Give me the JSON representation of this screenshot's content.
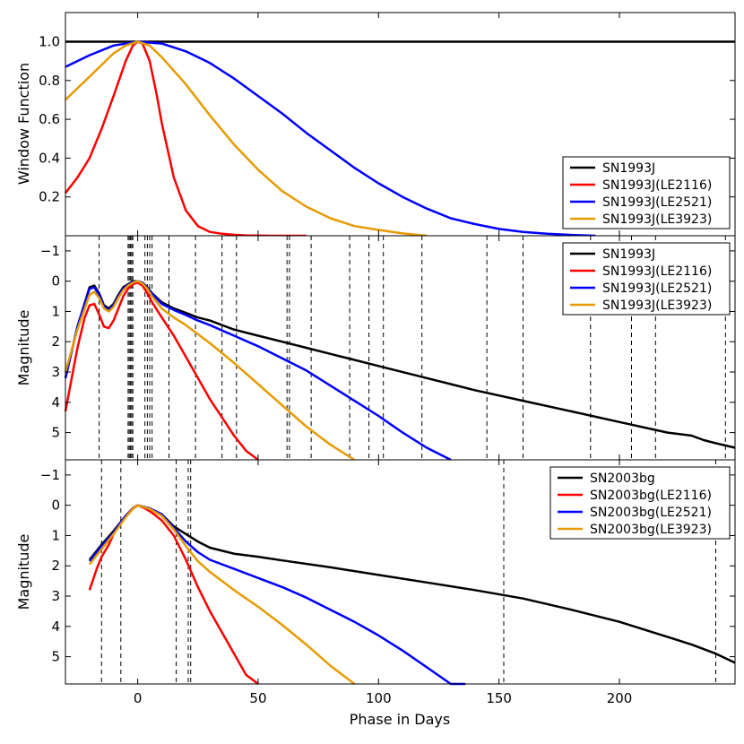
{
  "figure": {
    "xlabel": "Phase in Days"
  },
  "chart_data": [
    {
      "type": "line",
      "panel": "window",
      "title": "",
      "xlabel": "Phase in Days",
      "ylabel": "Window Function",
      "xlim": [
        -30,
        248
      ],
      "ylim": [
        0,
        1.15
      ],
      "inverted_y": false,
      "x_ticks": [
        0,
        50,
        100,
        150,
        200
      ],
      "x_tick_labels": [
        "",
        "",
        "",
        "",
        ""
      ],
      "y_ticks": [
        0.2,
        0.4,
        0.6,
        0.8,
        1.0
      ],
      "y_tick_labels": [
        "0.2",
        "0.4",
        "0.6",
        "0.8",
        "1.0"
      ],
      "legend_position": "bottom-right",
      "vlines": [],
      "series": [
        {
          "name": "SN1993J",
          "color": "#000000",
          "x": [
            -30,
            248
          ],
          "y": [
            1.0,
            1.0
          ]
        },
        {
          "name": "SN1993J(LE2116)",
          "color": "#ff0000",
          "x": [
            -30,
            -25,
            -20,
            -15,
            -10,
            -5,
            -2,
            0,
            2,
            5,
            8,
            10,
            15,
            20,
            25,
            30,
            35,
            40,
            45,
            50,
            55,
            60,
            70
          ],
          "y": [
            0.22,
            0.3,
            0.4,
            0.55,
            0.72,
            0.9,
            0.98,
            1.0,
            0.99,
            0.9,
            0.72,
            0.58,
            0.3,
            0.13,
            0.05,
            0.02,
            0.01,
            0.005,
            0.002,
            0.001,
            0.0,
            0.0,
            0.0
          ]
        },
        {
          "name": "SN1993J(LE2521)",
          "color": "#0000ff",
          "x": [
            -30,
            -20,
            -10,
            0,
            10,
            20,
            30,
            40,
            50,
            60,
            70,
            80,
            90,
            100,
            110,
            120,
            130,
            140,
            150,
            160,
            170,
            180,
            190
          ],
          "y": [
            0.87,
            0.93,
            0.98,
            1.0,
            0.99,
            0.95,
            0.89,
            0.81,
            0.72,
            0.63,
            0.53,
            0.44,
            0.35,
            0.27,
            0.2,
            0.14,
            0.09,
            0.06,
            0.035,
            0.02,
            0.01,
            0.004,
            0.0
          ]
        },
        {
          "name": "SN1993J(LE3923)",
          "color": "#e69b00",
          "x": [
            -30,
            -20,
            -10,
            -5,
            0,
            5,
            10,
            20,
            30,
            40,
            50,
            60,
            70,
            80,
            90,
            100,
            110,
            120
          ],
          "y": [
            0.7,
            0.82,
            0.94,
            0.98,
            1.0,
            0.98,
            0.92,
            0.78,
            0.62,
            0.47,
            0.34,
            0.23,
            0.15,
            0.09,
            0.05,
            0.03,
            0.012,
            0.0
          ]
        }
      ]
    },
    {
      "type": "line",
      "panel": "sn1993j",
      "title": "",
      "xlabel": "Phase in Days",
      "ylabel": "Magnitude",
      "xlim": [
        -30,
        248
      ],
      "ylim": [
        5.9,
        -1.5
      ],
      "inverted_y": true,
      "x_ticks": [
        0,
        50,
        100,
        150,
        200
      ],
      "x_tick_labels": [
        "",
        "",
        "",
        "",
        ""
      ],
      "y_ticks": [
        -1,
        0,
        1,
        2,
        3,
        4,
        5
      ],
      "y_tick_labels": [
        "−1",
        "0",
        "1",
        "2",
        "3",
        "4",
        "5"
      ],
      "legend_position": "top-right",
      "vlines": [
        -16,
        -4,
        -3.5,
        -3,
        -2.5,
        -2,
        3,
        4,
        5,
        6,
        13,
        24,
        35,
        41,
        62,
        63,
        72,
        88,
        96,
        102,
        118,
        145,
        160,
        188,
        205,
        215,
        244
      ],
      "series": [
        {
          "name": "SN1993J",
          "color": "#000000",
          "x": [
            -30,
            -25,
            -20,
            -18,
            -16,
            -14,
            -12,
            -10,
            -8,
            -6,
            -4,
            -2,
            0,
            2,
            4,
            6,
            10,
            15,
            20,
            25,
            30,
            40,
            50,
            60,
            70,
            80,
            90,
            100,
            120,
            140,
            160,
            180,
            200,
            220,
            230,
            235,
            240,
            248
          ],
          "y": [
            3.2,
            1.5,
            0.2,
            0.15,
            0.4,
            0.8,
            0.9,
            0.75,
            0.45,
            0.2,
            0.1,
            0.0,
            0.0,
            0.05,
            0.2,
            0.4,
            0.7,
            0.9,
            1.05,
            1.2,
            1.3,
            1.6,
            1.8,
            2.0,
            2.2,
            2.4,
            2.6,
            2.8,
            3.2,
            3.6,
            3.95,
            4.3,
            4.65,
            5.0,
            5.1,
            5.25,
            5.35,
            5.5
          ]
        },
        {
          "name": "SN1993J(LE2116)",
          "color": "#ff0000",
          "x": [
            -30,
            -25,
            -22,
            -20,
            -18,
            -16,
            -14,
            -12,
            -10,
            -8,
            -6,
            -4,
            -2,
            0,
            2,
            4,
            6,
            10,
            15,
            20,
            25,
            30,
            35,
            40,
            45,
            50
          ],
          "y": [
            4.3,
            2.2,
            1.2,
            0.8,
            0.75,
            1.1,
            1.5,
            1.55,
            1.3,
            0.9,
            0.5,
            0.25,
            0.1,
            0.05,
            0.15,
            0.4,
            0.7,
            1.2,
            1.8,
            2.5,
            3.2,
            3.9,
            4.5,
            5.1,
            5.6,
            6.0
          ]
        },
        {
          "name": "SN1993J(LE2521)",
          "color": "#0000ff",
          "x": [
            -30,
            -25,
            -20,
            -18,
            -16,
            -14,
            -12,
            -10,
            -8,
            -6,
            -4,
            -2,
            0,
            2,
            4,
            6,
            10,
            15,
            20,
            25,
            30,
            40,
            50,
            60,
            70,
            80,
            90,
            100,
            110,
            120,
            130
          ],
          "y": [
            3.2,
            1.5,
            0.25,
            0.2,
            0.45,
            0.85,
            0.95,
            0.8,
            0.5,
            0.25,
            0.12,
            0.03,
            0.0,
            0.06,
            0.22,
            0.42,
            0.75,
            0.95,
            1.12,
            1.3,
            1.45,
            1.8,
            2.15,
            2.55,
            2.95,
            3.45,
            3.95,
            4.45,
            5.0,
            5.5,
            6.0
          ]
        },
        {
          "name": "SN1993J(LE3923)",
          "color": "#e69b00",
          "x": [
            -30,
            -25,
            -20,
            -18,
            -16,
            -14,
            -12,
            -10,
            -8,
            -6,
            -4,
            -2,
            0,
            2,
            4,
            6,
            10,
            15,
            20,
            25,
            30,
            40,
            50,
            60,
            70,
            80,
            90
          ],
          "y": [
            3.0,
            1.6,
            0.45,
            0.35,
            0.55,
            0.9,
            1.0,
            0.85,
            0.55,
            0.3,
            0.15,
            0.05,
            0.0,
            0.08,
            0.25,
            0.5,
            0.9,
            1.2,
            1.45,
            1.75,
            2.05,
            2.7,
            3.4,
            4.1,
            4.8,
            5.4,
            6.0
          ]
        }
      ]
    },
    {
      "type": "line",
      "panel": "sn2003bg",
      "title": "",
      "xlabel": "Phase in Days",
      "ylabel": "Magnitude",
      "xlim": [
        -30,
        248
      ],
      "ylim": [
        5.9,
        -1.5
      ],
      "inverted_y": true,
      "x_ticks": [
        0,
        50,
        100,
        150,
        200
      ],
      "x_tick_labels": [
        "0",
        "50",
        "100",
        "150",
        "200"
      ],
      "y_ticks": [
        -1,
        0,
        1,
        2,
        3,
        4,
        5
      ],
      "y_tick_labels": [
        "−1",
        "0",
        "1",
        "2",
        "3",
        "4",
        "5"
      ],
      "legend_position": "top-right",
      "vlines": [
        -15,
        -7,
        16,
        21,
        22,
        152,
        240
      ],
      "series": [
        {
          "name": "SN2003bg",
          "color": "#000000",
          "x": [
            -20,
            -15,
            -10,
            -5,
            -2,
            0,
            5,
            10,
            15,
            20,
            25,
            30,
            40,
            50,
            60,
            80,
            100,
            120,
            140,
            160,
            180,
            200,
            220,
            230,
            240,
            248
          ],
          "y": [
            1.8,
            1.3,
            0.85,
            0.35,
            0.1,
            0.0,
            0.1,
            0.3,
            0.7,
            0.95,
            1.2,
            1.4,
            1.6,
            1.7,
            1.82,
            2.05,
            2.3,
            2.55,
            2.8,
            3.08,
            3.45,
            3.85,
            4.35,
            4.6,
            4.9,
            5.2
          ]
        },
        {
          "name": "SN2003bg(LE2116)",
          "color": "#ff0000",
          "x": [
            -20,
            -17,
            -15,
            -12,
            -10,
            -8,
            -5,
            -2,
            0,
            3,
            6,
            10,
            15,
            20,
            25,
            30,
            35,
            40,
            45,
            50
          ],
          "y": [
            2.8,
            2.1,
            1.7,
            1.3,
            0.95,
            0.7,
            0.35,
            0.1,
            0.0,
            0.1,
            0.25,
            0.5,
            1.0,
            1.8,
            2.7,
            3.5,
            4.2,
            4.9,
            5.6,
            6.1
          ]
        },
        {
          "name": "SN2003bg(LE2521)",
          "color": "#0000ff",
          "x": [
            -20,
            -15,
            -10,
            -5,
            -2,
            0,
            5,
            10,
            15,
            20,
            25,
            30,
            40,
            50,
            60,
            70,
            80,
            90,
            100,
            110,
            120,
            130,
            136
          ],
          "y": [
            1.85,
            1.35,
            0.9,
            0.35,
            0.12,
            0.0,
            0.1,
            0.3,
            0.75,
            1.2,
            1.55,
            1.8,
            2.1,
            2.4,
            2.7,
            3.05,
            3.45,
            3.85,
            4.3,
            4.8,
            5.35,
            5.95,
            6.1
          ]
        },
        {
          "name": "SN2003bg(LE3923)",
          "color": "#e69b00",
          "x": [
            -20,
            -15,
            -10,
            -5,
            -2,
            0,
            5,
            10,
            15,
            20,
            25,
            30,
            40,
            50,
            60,
            70,
            80,
            90
          ],
          "y": [
            1.95,
            1.45,
            0.95,
            0.4,
            0.12,
            0.0,
            0.12,
            0.35,
            0.8,
            1.35,
            1.85,
            2.2,
            2.8,
            3.35,
            3.95,
            4.6,
            5.3,
            6.1
          ]
        }
      ]
    }
  ]
}
